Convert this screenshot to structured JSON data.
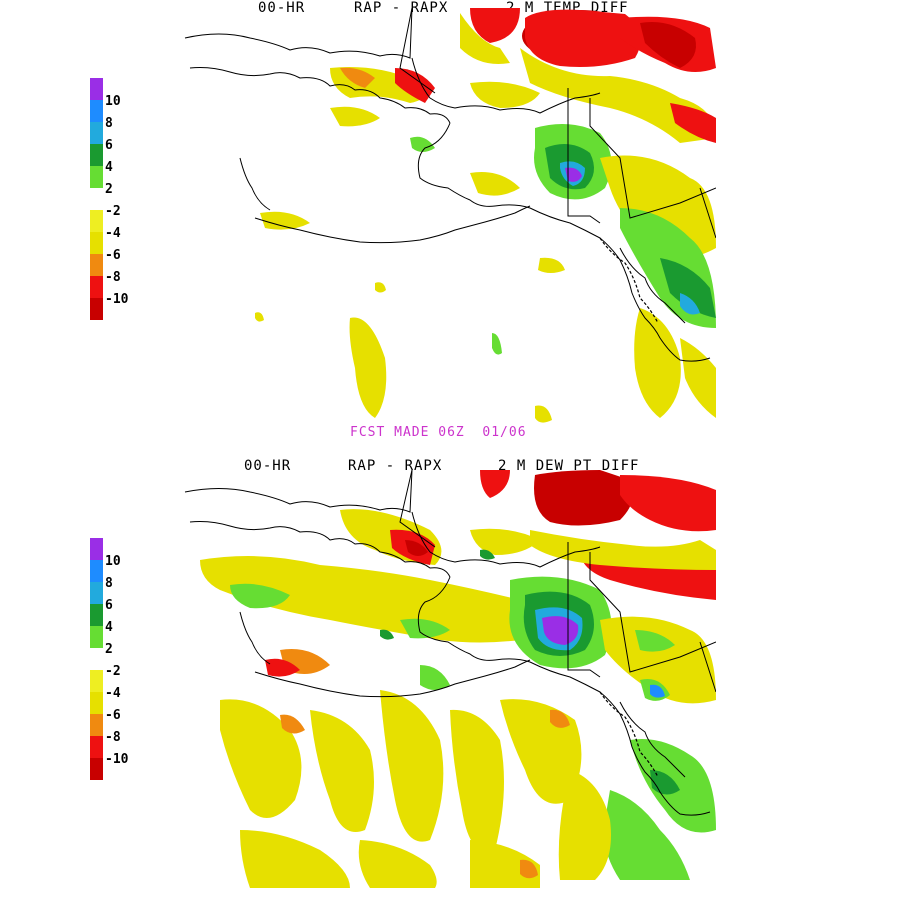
{
  "colors": {
    "p10": "#9a2ee6",
    "p8": "#1e8cff",
    "p6": "#22aadd",
    "p4": "#1a9a30",
    "p2": "#66dd33",
    "zero": "#ffffff",
    "m2": "#eeee22",
    "m4": "#e6e000",
    "m6": "#f08a10",
    "m8": "#ee1111",
    "m10": "#c80000",
    "coast": "#000000",
    "made": "#cc33cc"
  },
  "legend_labels": [
    "10",
    "8",
    "6",
    "4",
    "2",
    "-2",
    "-4",
    "-6",
    "-8",
    "-10"
  ],
  "panel_top": {
    "hour": "00-HR",
    "models": "RAP - RAPX",
    "field": "2 M TEMP DIFF"
  },
  "panel_bottom": {
    "hour": "00-HR",
    "models": "RAP - RAPX",
    "field": "2 M DEW PT DIFF"
  },
  "forecast_made": "FCST MADE 06Z  01/06"
}
